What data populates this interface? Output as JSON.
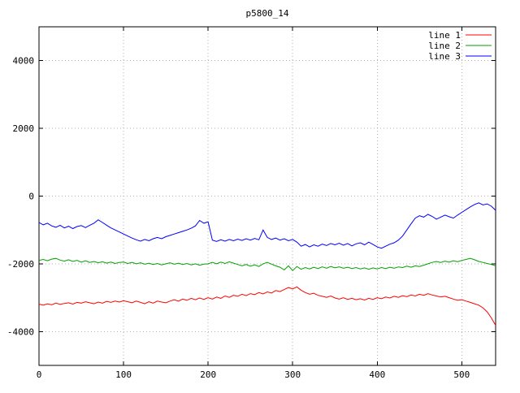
{
  "chart_data": {
    "type": "line",
    "title": "p5800_14",
    "xlabel": "",
    "ylabel": "",
    "xlim": [
      0,
      540
    ],
    "ylim": [
      -5000,
      5000
    ],
    "xticks": [
      0,
      100,
      200,
      300,
      400,
      500
    ],
    "yticks": [
      -4000,
      -2000,
      0,
      2000,
      4000
    ],
    "grid": true,
    "grid_style": "dotted",
    "legend_position": "top-right-inside",
    "background_color": "#ffffff",
    "border_color": "#000000",
    "x_start": 0,
    "x_step": 5,
    "series": [
      {
        "name": "line 1",
        "color": "#ff0000",
        "values": [
          -3190,
          -3220,
          -3180,
          -3210,
          -3160,
          -3200,
          -3170,
          -3150,
          -3190,
          -3140,
          -3160,
          -3120,
          -3150,
          -3180,
          -3130,
          -3160,
          -3110,
          -3140,
          -3100,
          -3130,
          -3090,
          -3120,
          -3150,
          -3100,
          -3140,
          -3180,
          -3120,
          -3160,
          -3100,
          -3130,
          -3150,
          -3100,
          -3060,
          -3100,
          -3040,
          -3080,
          -3020,
          -3060,
          -3010,
          -3050,
          -3000,
          -3040,
          -2980,
          -3020,
          -2950,
          -2990,
          -2930,
          -2960,
          -2900,
          -2940,
          -2880,
          -2910,
          -2850,
          -2890,
          -2830,
          -2860,
          -2790,
          -2820,
          -2760,
          -2700,
          -2740,
          -2680,
          -2780,
          -2850,
          -2900,
          -2870,
          -2930,
          -2960,
          -2990,
          -2950,
          -3010,
          -3040,
          -3000,
          -3050,
          -3020,
          -3060,
          -3030,
          -3070,
          -3020,
          -3050,
          -3000,
          -3030,
          -2980,
          -3010,
          -2960,
          -2990,
          -2940,
          -2970,
          -2920,
          -2950,
          -2900,
          -2930,
          -2880,
          -2920,
          -2950,
          -2980,
          -2960,
          -3000,
          -3040,
          -3080,
          -3060,
          -3100,
          -3140,
          -3180,
          -3220,
          -3300,
          -3420,
          -3600,
          -3820
        ]
      },
      {
        "name": "line 2",
        "color": "#00a000",
        "values": [
          -1900,
          -1870,
          -1910,
          -1860,
          -1840,
          -1890,
          -1920,
          -1880,
          -1930,
          -1900,
          -1950,
          -1910,
          -1960,
          -1930,
          -1970,
          -1940,
          -1980,
          -1950,
          -1990,
          -1960,
          -1950,
          -1990,
          -1960,
          -2000,
          -1970,
          -2010,
          -1980,
          -2020,
          -1990,
          -2030,
          -2000,
          -1970,
          -2010,
          -1980,
          -2020,
          -1990,
          -2030,
          -2000,
          -2040,
          -2010,
          -2000,
          -1960,
          -2000,
          -1950,
          -1990,
          -1940,
          -1980,
          -2020,
          -2060,
          -2020,
          -2070,
          -2030,
          -2080,
          -2000,
          -1960,
          -2010,
          -2060,
          -2100,
          -2180,
          -2060,
          -2200,
          -2080,
          -2160,
          -2110,
          -2150,
          -2100,
          -2140,
          -2090,
          -2130,
          -2080,
          -2120,
          -2090,
          -2130,
          -2100,
          -2140,
          -2110,
          -2150,
          -2120,
          -2160,
          -2120,
          -2150,
          -2110,
          -2140,
          -2100,
          -2130,
          -2090,
          -2110,
          -2070,
          -2100,
          -2060,
          -2080,
          -2040,
          -2000,
          -1960,
          -1930,
          -1960,
          -1920,
          -1950,
          -1910,
          -1940,
          -1900,
          -1870,
          -1840,
          -1880,
          -1930,
          -1960,
          -1990,
          -2020,
          -2060
        ]
      },
      {
        "name": "line 3",
        "color": "#0000ff",
        "values": [
          -780,
          -850,
          -800,
          -880,
          -920,
          -860,
          -940,
          -890,
          -960,
          -900,
          -870,
          -930,
          -860,
          -800,
          -700,
          -780,
          -860,
          -940,
          -1000,
          -1060,
          -1120,
          -1180,
          -1240,
          -1290,
          -1330,
          -1280,
          -1320,
          -1260,
          -1220,
          -1260,
          -1200,
          -1160,
          -1120,
          -1080,
          -1040,
          -1000,
          -950,
          -880,
          -720,
          -800,
          -760,
          -1300,
          -1340,
          -1290,
          -1330,
          -1280,
          -1320,
          -1270,
          -1310,
          -1260,
          -1300,
          -1250,
          -1290,
          -1000,
          -1220,
          -1280,
          -1240,
          -1300,
          -1260,
          -1320,
          -1280,
          -1360,
          -1480,
          -1430,
          -1500,
          -1440,
          -1480,
          -1420,
          -1460,
          -1400,
          -1440,
          -1390,
          -1450,
          -1400,
          -1470,
          -1410,
          -1380,
          -1440,
          -1360,
          -1430,
          -1500,
          -1540,
          -1480,
          -1420,
          -1380,
          -1300,
          -1180,
          -1000,
          -820,
          -650,
          -580,
          -620,
          -540,
          -600,
          -680,
          -620,
          -560,
          -610,
          -650,
          -560,
          -480,
          -400,
          -320,
          -250,
          -200,
          -260,
          -230,
          -300,
          -420
        ]
      }
    ]
  }
}
